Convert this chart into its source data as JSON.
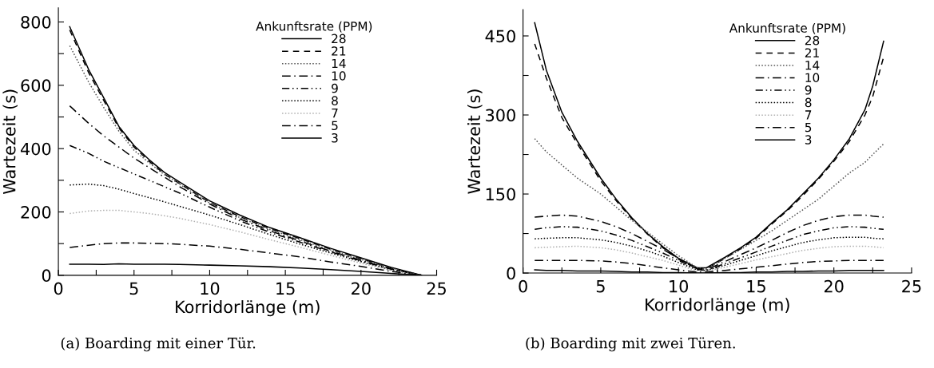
{
  "chart_data": [
    {
      "type": "line",
      "xlabel": "Korridorlänge (m)",
      "ylabel": "Wartezeit (s)",
      "legend_title": "Ankunftsrate (PPM)",
      "legend": "top right",
      "grid": false,
      "marker": "none",
      "annotations": [
        "(a) Boarding mit einer Tür."
      ],
      "xlim": [
        0,
        25
      ],
      "ylim": [
        0,
        845
      ],
      "xticks": [
        0,
        {
          "value": 2.5,
          "label": null
        },
        5,
        {
          "value": 7.5,
          "label": null
        },
        10,
        {
          "value": 12.5,
          "label": null
        },
        15,
        {
          "value": 17.5,
          "label": null
        },
        20,
        {
          "value": 22.5,
          "label": null
        },
        25
      ],
      "yticks": [
        0,
        {
          "value": 100,
          "label": null
        },
        200,
        {
          "value": 300,
          "label": null
        },
        400,
        {
          "value": 500,
          "label": null
        },
        600,
        {
          "value": 700,
          "label": null
        },
        800
      ],
      "x": [
        0.75,
        2,
        3,
        4,
        5,
        6,
        7,
        8,
        10,
        12,
        14,
        16,
        18,
        20,
        22,
        24
      ],
      "series": [
        {
          "name": "28",
          "color": "#000000",
          "line_style": "solid",
          "values": [
            785,
            650,
            560,
            470,
            410,
            365,
            325,
            295,
            235,
            190,
            150,
            118,
            85,
            55,
            25,
            0
          ]
        },
        {
          "name": "21",
          "color": "#000000",
          "line_style": "dashed",
          "values": [
            775,
            640,
            552,
            465,
            405,
            360,
            320,
            290,
            230,
            185,
            147,
            115,
            82,
            52,
            23,
            0
          ]
        },
        {
          "name": "14",
          "color": "#555555",
          "line_style": "dotted",
          "values": [
            725,
            610,
            530,
            455,
            395,
            355,
            318,
            288,
            228,
            182,
            144,
            112,
            80,
            50,
            22,
            0
          ]
        },
        {
          "name": "10",
          "color": "#000000",
          "line_style": "dashdot",
          "values": [
            535,
            480,
            440,
            405,
            370,
            340,
            310,
            280,
            225,
            178,
            140,
            108,
            76,
            47,
            20,
            0
          ]
        },
        {
          "name": "9",
          "color": "#000000",
          "line_style": "dashdotdot",
          "values": [
            410,
            385,
            360,
            340,
            320,
            300,
            280,
            260,
            215,
            172,
            135,
            104,
            74,
            45,
            19,
            0
          ]
        },
        {
          "name": "8",
          "color": "#000000",
          "line_style": "dotted",
          "values": [
            285,
            288,
            283,
            272,
            258,
            245,
            232,
            218,
            190,
            160,
            128,
            98,
            70,
            43,
            17,
            0
          ]
        },
        {
          "name": "7",
          "color": "#b0b0b0",
          "line_style": "dotted",
          "values": [
            195,
            203,
            205,
            205,
            200,
            195,
            188,
            180,
            160,
            137,
            112,
            88,
            63,
            38,
            15,
            0
          ]
        },
        {
          "name": "5",
          "color": "#000000",
          "line_style": "dashdot",
          "values": [
            88,
            95,
            100,
            102,
            102,
            101,
            100,
            98,
            92,
            82,
            70,
            58,
            42,
            28,
            12,
            0
          ]
        },
        {
          "name": "3",
          "color": "#000000",
          "line_style": "solid",
          "values": [
            35,
            35,
            34,
            36,
            35,
            35,
            35,
            34,
            32,
            30,
            27,
            23,
            18,
            12,
            6,
            0
          ]
        }
      ]
    },
    {
      "type": "line",
      "xlabel": "Korridorlänge (m)",
      "ylabel": "Wartezeit (s)",
      "legend_title": "Ankunftsrate (PPM)",
      "legend": "top right",
      "grid": false,
      "marker": "none",
      "annotations": [
        "(b) Boarding mit zwei Türen."
      ],
      "xlim": [
        0,
        25
      ],
      "ylim": [
        0,
        500
      ],
      "xticks": [
        0,
        {
          "value": 2.5,
          "label": null
        },
        5,
        {
          "value": 7.5,
          "label": null
        },
        10,
        {
          "value": 12.5,
          "label": null
        },
        15,
        {
          "value": 17.5,
          "label": null
        },
        20,
        {
          "value": 22.5,
          "label": null
        },
        25
      ],
      "yticks": [
        0,
        {
          "value": 75,
          "label": null
        },
        150,
        {
          "value": 225,
          "label": null
        },
        300,
        {
          "value": 375,
          "label": null
        },
        450
      ],
      "x": [
        0.75,
        1.5,
        2.5,
        3.5,
        5,
        6,
        7,
        8,
        9,
        10,
        11.2,
        11.8,
        13,
        14,
        15,
        16,
        17,
        18,
        19,
        20,
        21,
        22,
        22.5,
        23.2
      ],
      "series": [
        {
          "name": "28",
          "color": "#000000",
          "line_style": "solid",
          "values": [
            475,
            385,
            305,
            250,
            180,
            140,
            105,
            75,
            50,
            28,
            10,
            10,
            30,
            48,
            68,
            95,
            120,
            150,
            180,
            215,
            255,
            310,
            355,
            440
          ]
        },
        {
          "name": "21",
          "color": "#000000",
          "line_style": "dashed",
          "values": [
            435,
            370,
            295,
            245,
            175,
            137,
            103,
            74,
            48,
            26,
            8,
            8,
            28,
            46,
            66,
            93,
            118,
            147,
            178,
            212,
            250,
            300,
            335,
            410
          ]
        },
        {
          "name": "14",
          "color": "#555555",
          "line_style": "dotted",
          "values": [
            255,
            230,
            205,
            180,
            150,
            125,
            100,
            78,
            55,
            33,
            10,
            8,
            28,
            45,
            62,
            80,
            100,
            120,
            140,
            165,
            190,
            210,
            225,
            245
          ]
        },
        {
          "name": "10",
          "color": "#000000",
          "line_style": "dashdot",
          "values": [
            106,
            108,
            110,
            108,
            98,
            88,
            75,
            60,
            45,
            28,
            8,
            6,
            22,
            35,
            48,
            62,
            77,
            90,
            100,
            107,
            110,
            110,
            108,
            106
          ]
        },
        {
          "name": "9",
          "color": "#000000",
          "line_style": "dashdotdot",
          "values": [
            83,
            86,
            88,
            87,
            80,
            72,
            62,
            50,
            38,
            24,
            7,
            5,
            18,
            29,
            40,
            51,
            62,
            73,
            80,
            86,
            88,
            87,
            85,
            83
          ]
        },
        {
          "name": "8",
          "color": "#000000",
          "line_style": "dotted",
          "values": [
            65,
            66,
            67,
            67,
            63,
            58,
            51,
            42,
            32,
            20,
            6,
            5,
            15,
            24,
            33,
            42,
            50,
            58,
            63,
            67,
            68,
            68,
            66,
            65
          ]
        },
        {
          "name": "7",
          "color": "#b0b0b0",
          "line_style": "dotted",
          "values": [
            48,
            49,
            50,
            51,
            48,
            44,
            38,
            31,
            24,
            15,
            4,
            4,
            11,
            18,
            25,
            31,
            37,
            43,
            47,
            50,
            51,
            51,
            50,
            48
          ]
        },
        {
          "name": "5",
          "color": "#000000",
          "line_style": "dashdot",
          "values": [
            24,
            24,
            24,
            24,
            23,
            21,
            18,
            14,
            10,
            6,
            2,
            2,
            5,
            8,
            11,
            14,
            17,
            20,
            22,
            23,
            24,
            24,
            24,
            24
          ]
        },
        {
          "name": "3",
          "color": "#000000",
          "line_style": "solid",
          "values": [
            6,
            5,
            5,
            4,
            4,
            3,
            2,
            2,
            1,
            1,
            0,
            0,
            1,
            1,
            2,
            2,
            3,
            3,
            4,
            4,
            5,
            5,
            5,
            5
          ]
        }
      ]
    }
  ]
}
